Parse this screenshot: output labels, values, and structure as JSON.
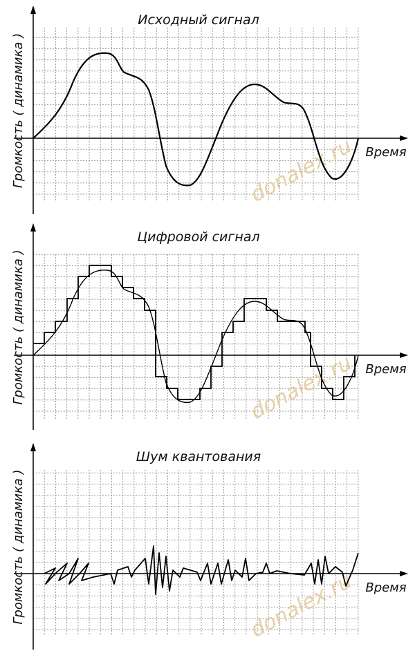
{
  "panels": [
    {
      "title": "Исходный сигнал",
      "y_axis_label": "Громкость ( динамика )",
      "x_axis_label": "Время",
      "watermark": "donalex.ru"
    },
    {
      "title": "Цифровой сигнал",
      "y_axis_label": "Громкость ( динамика )",
      "x_axis_label": "Время",
      "watermark": "donalex.ru"
    },
    {
      "title": "Шум квантования",
      "y_axis_label": "Громкость ( динамика )",
      "x_axis_label": "Время",
      "watermark": "donalex.ru"
    }
  ]
}
